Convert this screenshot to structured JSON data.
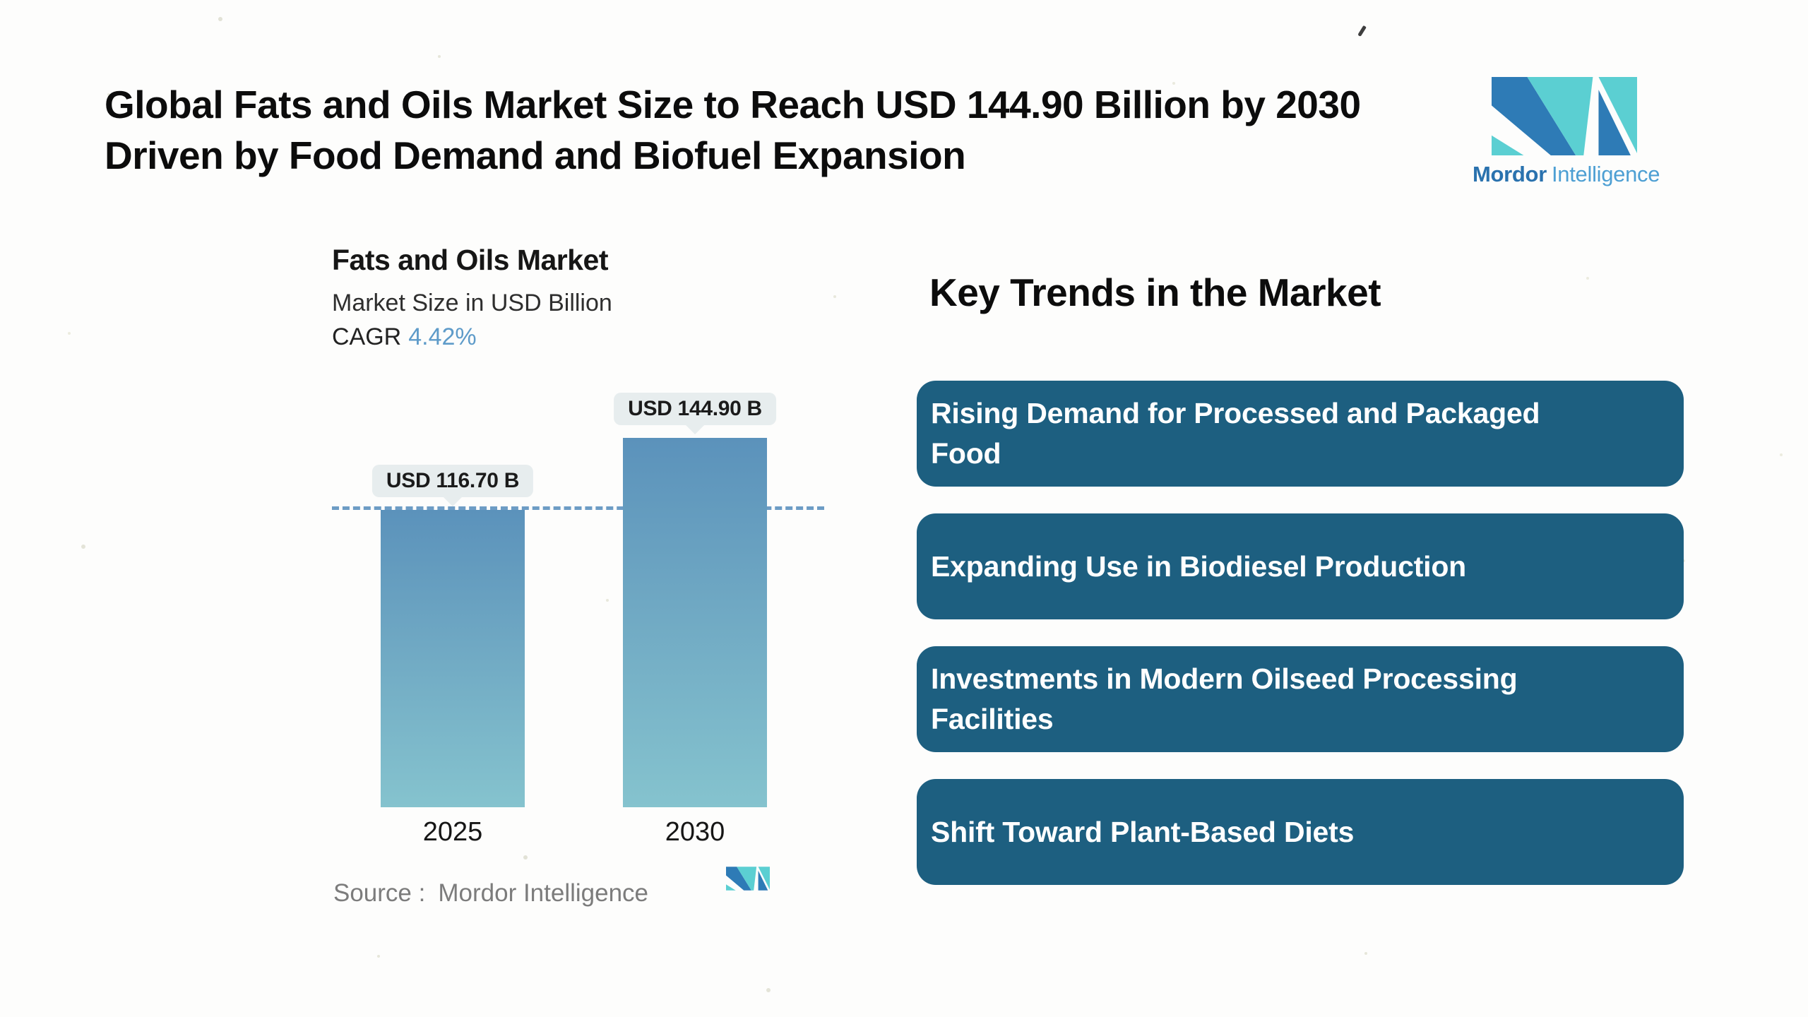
{
  "header": {
    "title_line1": "Global Fats and Oils Market Size to Reach USD 144.90 Billion by 2030",
    "title_line2": "Driven by Food Demand and Biofuel Expansion"
  },
  "brand": {
    "name_bold": "Mordor",
    "name_light": "Intelligence",
    "logo_blue": "#2e7bb6",
    "logo_teal": "#5bcfd2"
  },
  "chart": {
    "title": "Fats and Oils Market",
    "subtitle": "Market Size in USD Billion",
    "cagr_label": "CAGR",
    "cagr_value": "4.42%",
    "source_label": "Source :",
    "source_value": "Mordor Intelligence"
  },
  "chart_data": {
    "type": "bar",
    "title": "Fats and Oils Market",
    "ylabel": "Market Size in USD Billion",
    "categories": [
      "2025",
      "2030"
    ],
    "values": [
      116.7,
      144.9
    ],
    "value_labels": [
      "USD 116.70 B",
      "USD 144.90 B"
    ],
    "cagr": "4.42%",
    "reference_line": 116.7,
    "ylim": [
      0,
      161.7
    ],
    "grid": false,
    "bar_gradient_top": "#5b92bb",
    "bar_gradient_bottom": "#85c3ce",
    "reference_line_color": "#6d9cc5",
    "badge_bg": "#e7edee"
  },
  "trends": {
    "heading": "Key Trends in the Market",
    "box_color": "#1d5f80",
    "items": [
      {
        "label": "Rising Demand for Processed and Packaged Food"
      },
      {
        "label": "Expanding Use in Biodiesel Production"
      },
      {
        "label": "Investments in Modern Oilseed Processing Facilities"
      },
      {
        "label": "Shift Toward Plant-Based Diets"
      }
    ]
  }
}
